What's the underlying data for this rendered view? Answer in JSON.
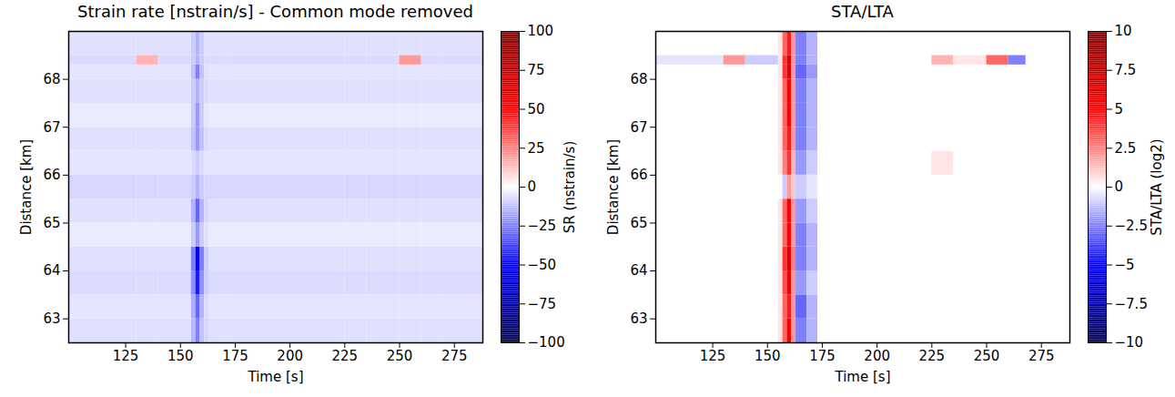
{
  "chart_data": [
    {
      "type": "heatmap",
      "title": "Strain rate [nstrain/s] - Common mode removed",
      "x_label": "Time [s]",
      "y_label": "Distance [km]",
      "xlim": [
        99,
        288
      ],
      "ylim": [
        62.5,
        69
      ],
      "xticks": [
        125,
        150,
        175,
        200,
        225,
        250,
        275
      ],
      "yticks": [
        63,
        64,
        65,
        66,
        67,
        68
      ],
      "x_edges": [
        99,
        130,
        140,
        155,
        157,
        159,
        161,
        163,
        168,
        173,
        225,
        235,
        250,
        260,
        268,
        288
      ],
      "y_edges": [
        62.5,
        63,
        63.5,
        64,
        64.5,
        65,
        65.5,
        66,
        66.5,
        67,
        67.5,
        68,
        68.3,
        68.5,
        69
      ],
      "values": [
        [
          -6,
          -6,
          -6,
          -14,
          -25,
          -12,
          -8,
          -6,
          -6,
          -6,
          -6,
          -6,
          -6,
          -6,
          -6
        ],
        [
          -5,
          -5,
          -5,
          -16,
          -30,
          -15,
          -7,
          -5,
          -5,
          -5,
          -5,
          -5,
          -5,
          -5,
          -5
        ],
        [
          -7,
          -7,
          -7,
          -22,
          -45,
          -22,
          -10,
          -7,
          -7,
          -7,
          -7,
          -7,
          -7,
          -7,
          -7
        ],
        [
          -6,
          -6,
          -6,
          -25,
          -50,
          -25,
          -10,
          -6,
          -6,
          -6,
          -6,
          -6,
          -6,
          -6,
          -6
        ],
        [
          -4,
          -4,
          -4,
          -10,
          -20,
          -10,
          -6,
          -4,
          -4,
          -4,
          -4,
          -4,
          -4,
          -4,
          -4
        ],
        [
          -6,
          -6,
          -6,
          -15,
          -30,
          -15,
          -8,
          -6,
          -6,
          -6,
          -6,
          -6,
          -6,
          -6,
          -6
        ],
        [
          -8,
          -8,
          -8,
          -10,
          -15,
          -10,
          -8,
          -8,
          -8,
          -8,
          -8,
          -8,
          -8,
          -8,
          -8
        ],
        [
          -5,
          -5,
          -5,
          -7,
          -10,
          -7,
          -5,
          -5,
          -5,
          -5,
          -5,
          -5,
          -5,
          -5,
          -5
        ],
        [
          -6,
          -6,
          -6,
          -12,
          -20,
          -12,
          -7,
          -6,
          -6,
          -6,
          -6,
          -6,
          -6,
          -6,
          -6
        ],
        [
          -4,
          -4,
          -4,
          -10,
          -20,
          -10,
          -5,
          -4,
          -4,
          -4,
          -4,
          -4,
          -4,
          -4,
          -4
        ],
        [
          -6,
          -6,
          -6,
          -10,
          -15,
          -10,
          -7,
          -6,
          -6,
          -6,
          -6,
          -6,
          -6,
          -6,
          -6
        ],
        [
          -5,
          -5,
          -5,
          -12,
          -25,
          -12,
          -6,
          -5,
          -5,
          -5,
          -5,
          -5,
          -5,
          -5,
          -5
        ],
        [
          -7,
          15,
          -7,
          -10,
          -15,
          -10,
          -7,
          -7,
          -7,
          -7,
          -7,
          -7,
          20,
          -7,
          -7
        ],
        [
          -6,
          -6,
          -6,
          -10,
          -15,
          -10,
          -6,
          -6,
          -6,
          -6,
          -6,
          -6,
          -6,
          -6,
          -6
        ]
      ],
      "colorbar": {
        "label": "SR (nstrain/s)",
        "lim": [
          -100,
          100
        ],
        "ticks": [
          {
            "value": -100,
            "label": "−100"
          },
          {
            "value": -75,
            "label": "−75"
          },
          {
            "value": -50,
            "label": "−50"
          },
          {
            "value": -25,
            "label": "−25"
          },
          0,
          25,
          50,
          75,
          100
        ]
      }
    },
    {
      "type": "heatmap",
      "title": "STA/LTA",
      "x_label": "Time [s]",
      "y_label": "Distance [km]",
      "xlim": [
        99,
        288
      ],
      "ylim": [
        62.5,
        69
      ],
      "xticks": [
        125,
        150,
        175,
        200,
        225,
        250,
        275
      ],
      "yticks": [
        63,
        64,
        65,
        66,
        67,
        68
      ],
      "x_edges": [
        99,
        130,
        140,
        155,
        157,
        159,
        161,
        163,
        168,
        173,
        225,
        235,
        250,
        260,
        268,
        288
      ],
      "y_edges": [
        62.5,
        63,
        63.5,
        64,
        64.5,
        65,
        65.5,
        66,
        66.5,
        67,
        67.5,
        68,
        68.3,
        68.5,
        69
      ],
      "values": [
        [
          0,
          0,
          0,
          0.5,
          3,
          5,
          2,
          -2.5,
          -1.5,
          0,
          0,
          0,
          0,
          0,
          0
        ],
        [
          0,
          0,
          0,
          0.5,
          3,
          4.5,
          2,
          -3,
          -1.5,
          0,
          0,
          0,
          0,
          0,
          0
        ],
        [
          0,
          0,
          0,
          0.5,
          3.5,
          5.5,
          2,
          -2,
          -1,
          0,
          0,
          0,
          0,
          0,
          0
        ],
        [
          0,
          0,
          0,
          0.5,
          4,
          6,
          2.5,
          -2.5,
          -1.5,
          0,
          0,
          0,
          0,
          0,
          0
        ],
        [
          0,
          0,
          0,
          0.5,
          3,
          5,
          2,
          -2.5,
          -1.5,
          0,
          0,
          0,
          0,
          0,
          0
        ],
        [
          0,
          0,
          0,
          0.5,
          3,
          5,
          2,
          -2,
          -1,
          0,
          0,
          0,
          0,
          0,
          0
        ],
        [
          0,
          0,
          0,
          0,
          -1,
          2,
          1,
          -1,
          -0.5,
          0,
          0,
          0,
          0,
          0,
          0
        ],
        [
          0,
          0,
          0,
          0.5,
          2.5,
          4,
          1.5,
          -2,
          -1,
          0,
          0.5,
          0,
          0,
          0,
          0
        ],
        [
          0,
          0,
          0,
          0.5,
          3,
          4.5,
          2,
          -2.5,
          -1.5,
          0,
          0,
          0,
          0,
          0,
          0
        ],
        [
          0,
          0,
          0,
          0.5,
          3,
          5,
          2,
          -2.5,
          -1.5,
          0,
          0,
          0,
          0,
          0,
          0
        ],
        [
          0,
          0,
          0,
          0.5,
          3,
          5,
          2,
          -2.5,
          -1.5,
          0,
          0,
          0,
          0,
          0,
          0
        ],
        [
          0,
          0,
          0,
          0.5,
          4,
          6,
          2,
          -3,
          -2,
          0,
          0,
          0,
          0,
          0,
          0
        ],
        [
          -0.5,
          2,
          -1,
          0.5,
          4,
          6,
          2,
          -2.5,
          -1.5,
          0,
          1.5,
          0.5,
          3,
          -2.5,
          0
        ],
        [
          0,
          0,
          0,
          0.5,
          3,
          4.5,
          2,
          -2.5,
          -1.5,
          0,
          0,
          0,
          0,
          0,
          0
        ]
      ],
      "colorbar": {
        "label": "STA/LTA (log2)",
        "lim": [
          -10,
          10
        ],
        "ticks": [
          {
            "value": -10,
            "label": "−10"
          },
          {
            "value": -7.5,
            "label": "−7.5"
          },
          {
            "value": -5,
            "label": "−5"
          },
          {
            "value": -2.5,
            "label": "−2.5"
          },
          0,
          2.5,
          5,
          7.5,
          10
        ]
      }
    }
  ]
}
